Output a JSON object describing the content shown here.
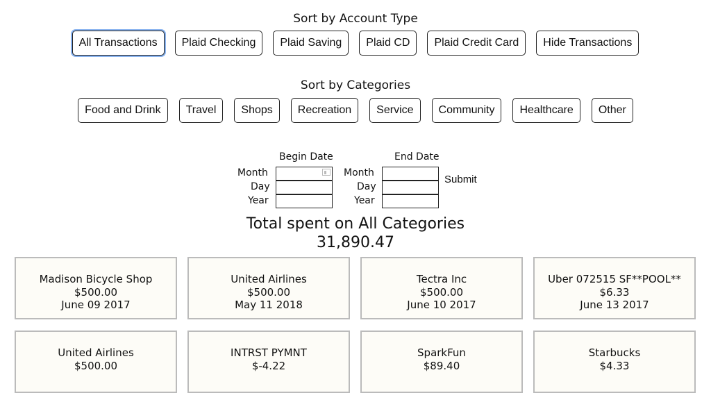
{
  "account_sort": {
    "title": "Sort by Account Type",
    "buttons": [
      "All Transactions",
      "Plaid Checking",
      "Plaid Saving",
      "Plaid CD",
      "Plaid Credit Card",
      "Hide Transactions"
    ],
    "active": "All Transactions"
  },
  "category_sort": {
    "title": "Sort by Categories",
    "buttons": [
      "Food and Drink",
      "Travel",
      "Shops",
      "Recreation",
      "Service",
      "Community",
      "Healthcare",
      "Other"
    ]
  },
  "date_filter": {
    "begin_label": "Begin Date",
    "end_label": "End Date",
    "month": "Month",
    "day": "Day",
    "year": "Year",
    "submit": "Submit"
  },
  "total": {
    "title": "Total spent on All Categories",
    "amount": "31,890.47"
  },
  "transactions": [
    {
      "name": "Madison Bicycle Shop",
      "amount": "$500.00",
      "date": "June 09 2017"
    },
    {
      "name": "United Airlines",
      "amount": "$500.00",
      "date": "May 11 2018"
    },
    {
      "name": "Tectra Inc",
      "amount": "$500.00",
      "date": "June 10 2017"
    },
    {
      "name": "Uber 072515 SF**POOL**",
      "amount": "$6.33",
      "date": "June 13 2017"
    },
    {
      "name": "United Airlines",
      "amount": "$500.00",
      "date": ""
    },
    {
      "name": "INTRST PYMNT",
      "amount": "$-4.22",
      "date": ""
    },
    {
      "name": "SparkFun",
      "amount": "$89.40",
      "date": ""
    },
    {
      "name": "Starbucks",
      "amount": "$4.33",
      "date": ""
    }
  ],
  "colors": {
    "focus_ring": "#8ab4f0",
    "card_bg": "#fdfcf7",
    "card_border": "#bbbbbb"
  }
}
